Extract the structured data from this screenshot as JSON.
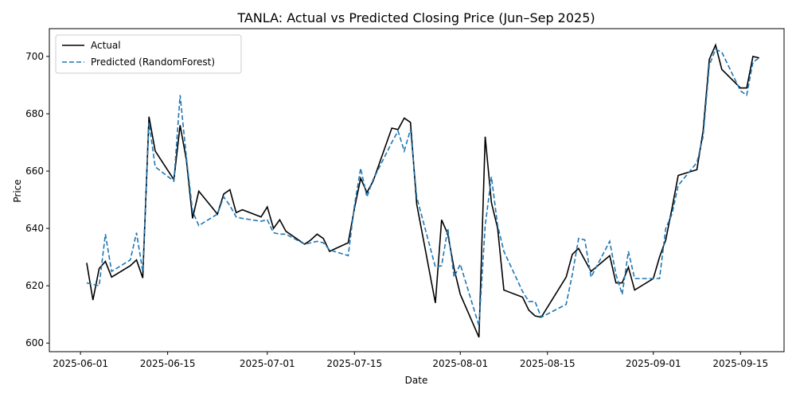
{
  "chart_data": {
    "type": "line",
    "title": "TANLA: Actual vs Predicted Closing Price (Jun–Sep 2025)",
    "xlabel": "Date",
    "ylabel": "Price",
    "x": [
      "2025-06-02",
      "2025-06-03",
      "2025-06-04",
      "2025-06-05",
      "2025-06-06",
      "2025-06-09",
      "2025-06-10",
      "2025-06-11",
      "2025-06-12",
      "2025-06-13",
      "2025-06-16",
      "2025-06-17",
      "2025-06-18",
      "2025-06-19",
      "2025-06-20",
      "2025-06-23",
      "2025-06-24",
      "2025-06-25",
      "2025-06-26",
      "2025-06-27",
      "2025-06-30",
      "2025-07-01",
      "2025-07-02",
      "2025-07-03",
      "2025-07-04",
      "2025-07-07",
      "2025-07-08",
      "2025-07-09",
      "2025-07-10",
      "2025-07-11",
      "2025-07-14",
      "2025-07-15",
      "2025-07-16",
      "2025-07-17",
      "2025-07-18",
      "2025-07-21",
      "2025-07-22",
      "2025-07-23",
      "2025-07-24",
      "2025-07-25",
      "2025-07-28",
      "2025-07-29",
      "2025-07-30",
      "2025-07-31",
      "2025-08-01",
      "2025-08-04",
      "2025-08-05",
      "2025-08-06",
      "2025-08-07",
      "2025-08-08",
      "2025-08-11",
      "2025-08-12",
      "2025-08-13",
      "2025-08-14",
      "2025-08-18",
      "2025-08-19",
      "2025-08-20",
      "2025-08-21",
      "2025-08-22",
      "2025-08-25",
      "2025-08-26",
      "2025-08-27",
      "2025-08-28",
      "2025-08-29",
      "2025-09-01",
      "2025-09-02",
      "2025-09-03",
      "2025-09-04",
      "2025-09-05",
      "2025-09-08",
      "2025-09-09",
      "2025-09-10",
      "2025-09-11",
      "2025-09-12",
      "2025-09-15",
      "2025-09-16",
      "2025-09-17",
      "2025-09-18"
    ],
    "series": [
      {
        "name": "Actual",
        "color": "#000000",
        "dash": false,
        "values": [
          628,
          615,
          626,
          628.5,
          623,
          627,
          629,
          622.7,
          679,
          667,
          657,
          676,
          664,
          643.5,
          653,
          645,
          652,
          653.5,
          645.5,
          646.5,
          644,
          647.5,
          640,
          643,
          639,
          634.5,
          636,
          638,
          636.5,
          632,
          635,
          647,
          657.5,
          652.5,
          656.5,
          675,
          674.5,
          678.5,
          677,
          648.5,
          614,
          643,
          638,
          626,
          617,
          602,
          672,
          649,
          640,
          618.5,
          616,
          611.5,
          609.5,
          609,
          623,
          631,
          633,
          629,
          625,
          630.5,
          621,
          621,
          626.5,
          618.5,
          622.5,
          630,
          636,
          647,
          658.5,
          660.5,
          674,
          699,
          704,
          695.5,
          689,
          689,
          700,
          699.5
        ]
      },
      {
        "name": "Predicted (RandomForest)",
        "color": "#1f77b4",
        "dash": true,
        "values": [
          621,
          620.5,
          620,
          638,
          625,
          629,
          638.5,
          625,
          677,
          661.5,
          656.5,
          686.5,
          665,
          646,
          641,
          645,
          651,
          648,
          644,
          643.5,
          642.5,
          643,
          638.5,
          638,
          638,
          634.5,
          635,
          635.5,
          635,
          632.5,
          630.5,
          648,
          661,
          651,
          657,
          670,
          674,
          667,
          674.5,
          651,
          626.5,
          627,
          640,
          623,
          627.5,
          606,
          641,
          658,
          641,
          632,
          618,
          614.5,
          614.5,
          609,
          613.5,
          624,
          636.5,
          636,
          623,
          635.5,
          624,
          617,
          632,
          622.5,
          622.5,
          622.5,
          640,
          645,
          655,
          663,
          672,
          697,
          702.5,
          701.5,
          688,
          686.5,
          698,
          699.5
        ]
      }
    ],
    "xlim": [
      "2025-05-27",
      "2025-09-22"
    ],
    "xticks": [
      "2025-06-01",
      "2025-06-15",
      "2025-07-01",
      "2025-07-15",
      "2025-08-01",
      "2025-08-15",
      "2025-09-01",
      "2025-09-15"
    ],
    "ylim": [
      597,
      709.7
    ],
    "yticks": [
      600,
      620,
      640,
      660,
      680,
      700
    ],
    "legend": "upper left"
  }
}
